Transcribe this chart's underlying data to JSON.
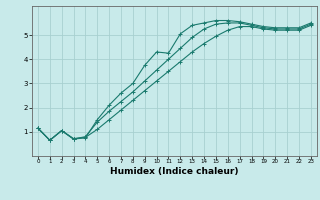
{
  "xlabel": "Humidex (Indice chaleur)",
  "bg_color": "#c8eaea",
  "grid_color": "#a8d0d0",
  "line_color": "#1a7a6e",
  "xlim": [
    -0.5,
    23.5
  ],
  "ylim": [
    0,
    6.2
  ],
  "xticks": [
    0,
    1,
    2,
    3,
    4,
    5,
    6,
    7,
    8,
    9,
    10,
    11,
    12,
    13,
    14,
    15,
    16,
    17,
    18,
    19,
    20,
    21,
    22,
    23
  ],
  "yticks": [
    1,
    2,
    3,
    4,
    5
  ],
  "line1_x": [
    0,
    1,
    2,
    3,
    4,
    5,
    6,
    7,
    8,
    9,
    10,
    11,
    12,
    13,
    14,
    15,
    16,
    17,
    18,
    19,
    20,
    21,
    22,
    23
  ],
  "line1_y": [
    1.15,
    0.65,
    1.05,
    0.7,
    0.75,
    1.5,
    2.1,
    2.6,
    3.0,
    3.75,
    4.3,
    4.25,
    5.05,
    5.4,
    5.5,
    5.6,
    5.6,
    5.55,
    5.45,
    5.35,
    5.3,
    5.3,
    5.3,
    5.5
  ],
  "line2_x": [
    0,
    1,
    2,
    3,
    4,
    5,
    6,
    7,
    8,
    9,
    10,
    11,
    12,
    13,
    14,
    15,
    16,
    17,
    18,
    19,
    20,
    21,
    22,
    23
  ],
  "line2_y": [
    1.15,
    0.65,
    1.05,
    0.7,
    0.8,
    1.4,
    1.85,
    2.25,
    2.65,
    3.1,
    3.55,
    4.0,
    4.45,
    4.9,
    5.25,
    5.45,
    5.5,
    5.5,
    5.4,
    5.3,
    5.25,
    5.25,
    5.25,
    5.45
  ],
  "line3_x": [
    0,
    1,
    2,
    3,
    4,
    5,
    6,
    7,
    8,
    9,
    10,
    11,
    12,
    13,
    14,
    15,
    16,
    17,
    18,
    19,
    20,
    21,
    22,
    23
  ],
  "line3_y": [
    1.15,
    0.65,
    1.05,
    0.72,
    0.77,
    1.1,
    1.5,
    1.9,
    2.3,
    2.7,
    3.1,
    3.5,
    3.9,
    4.3,
    4.65,
    4.95,
    5.2,
    5.35,
    5.35,
    5.25,
    5.2,
    5.2,
    5.2,
    5.4
  ]
}
